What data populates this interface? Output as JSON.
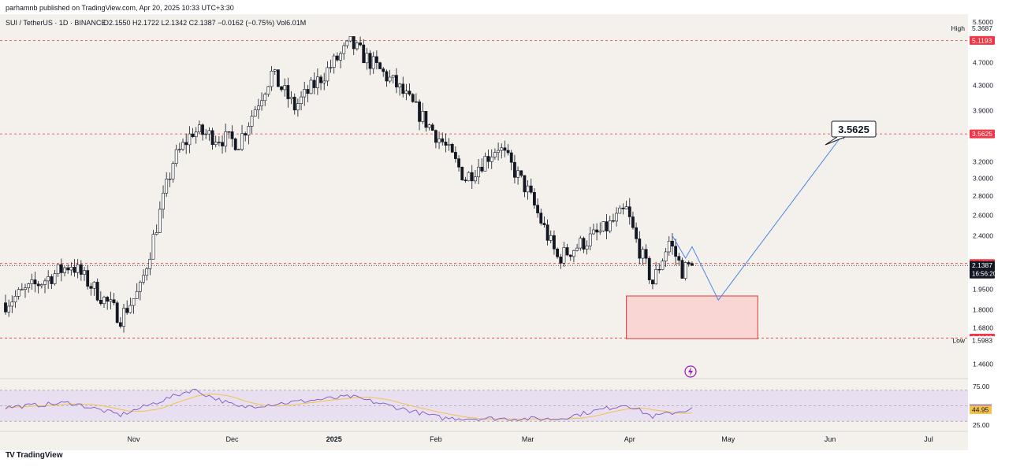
{
  "header": {
    "publisher_line": "parhamnb published on TradingView.com, Apr 20, 2025 10:33 UTC+3:30"
  },
  "legend": {
    "symbol": "SUI / TetherUS · 1D · BINANCE",
    "ohlc": "O2.1550 H2.1722 L2.1342 C2.1387 −0.0162 (−0.75%) Vol6.01M"
  },
  "footer": {
    "brand": "TradingView",
    "logo": "TV"
  },
  "colors": {
    "up": "#ffffff",
    "down": "#131722",
    "wick": "#131722",
    "level_line": "#e03a3a",
    "level_tag": "#f23645",
    "projection": "#4a86e8",
    "zone_fill": "#f9d5d3",
    "zone_border": "#e03a3a",
    "rsi_line": "#7e57c2",
    "rsi_ma": "#f2c14e",
    "rsi_band": "#e8e0f0"
  },
  "chart_data": {
    "type": "candlestick",
    "symbol": "SUI / TetherUS",
    "timeframe": "1D",
    "exchange": "BINANCE",
    "last": {
      "open": 2.155,
      "high": 2.1722,
      "low": 2.1342,
      "close": 2.1387,
      "change": -0.0162,
      "change_pct": -0.75,
      "volume": "6.01M"
    },
    "ylim": [
      1.4,
      5.6
    ],
    "y_scale": "log",
    "y_ticks": [
      "5.5000",
      "4.7000",
      "4.3000",
      "3.9000",
      "3.2000",
      "3.0000",
      "2.8000",
      "2.6000",
      "2.4000",
      "1.9500",
      "1.8000",
      "1.6800",
      "1.4600"
    ],
    "x_ticks": [
      "Nov",
      "Dec",
      "2025",
      "Feb",
      "Mar",
      "Apr",
      "May",
      "Jun",
      "Jul"
    ],
    "x_tick_dates": [
      "2024-11-01",
      "2024-12-01",
      "2025-01-01",
      "2025-02-01",
      "2025-03-01",
      "2025-04-01",
      "2025-05-01",
      "2025-06-01",
      "2025-07-01"
    ],
    "x_range": [
      "2024-09-23",
      "2025-07-13"
    ],
    "key_points": [
      {
        "date": "2024-09-23",
        "close": 1.85
      },
      {
        "date": "2024-10-13",
        "close": 2.15
      },
      {
        "date": "2024-10-28",
        "close": 1.75
      },
      {
        "date": "2024-11-03",
        "close": 1.95
      },
      {
        "date": "2024-11-13",
        "close": 3.2
      },
      {
        "date": "2024-11-19",
        "close": 3.6
      },
      {
        "date": "2024-12-03",
        "close": 3.45
      },
      {
        "date": "2024-12-13",
        "close": 4.5
      },
      {
        "date": "2024-12-20",
        "close": 3.95
      },
      {
        "date": "2025-01-06",
        "close": 5.05
      },
      {
        "date": "2025-01-20",
        "close": 4.3
      },
      {
        "date": "2025-02-03",
        "close": 3.45
      },
      {
        "date": "2025-02-10",
        "close": 3.0
      },
      {
        "date": "2025-02-20",
        "close": 3.4
      },
      {
        "date": "2025-03-01",
        "close": 2.85
      },
      {
        "date": "2025-03-10",
        "close": 2.2
      },
      {
        "date": "2025-03-24",
        "close": 2.45
      },
      {
        "date": "2025-03-31",
        "close": 2.65
      },
      {
        "date": "2025-04-03",
        "close": 2.35
      },
      {
        "date": "2025-04-08",
        "close": 2.0
      },
      {
        "date": "2025-04-13",
        "close": 2.35
      },
      {
        "date": "2025-04-17",
        "close": 2.1
      },
      {
        "date": "2025-04-20",
        "close": 2.1387
      }
    ],
    "levels": [
      {
        "label": "High",
        "value": "5.3687"
      },
      {
        "label": "",
        "value": "5.1193"
      },
      {
        "label": "",
        "value": "3.5625"
      },
      {
        "label": "",
        "value": "2.1553"
      },
      {
        "label": "",
        "value": "2.1387",
        "countdown": "16:56:20"
      },
      {
        "label": "",
        "value": "1.6138"
      },
      {
        "label": "Low",
        "value": "1.5983"
      }
    ],
    "projection_label": "3.5625",
    "projection_path": [
      {
        "date": "2025-04-14",
        "value": 2.4
      },
      {
        "date": "2025-04-18",
        "value": 2.2
      },
      {
        "date": "2025-04-20",
        "value": 2.3
      },
      {
        "date": "2025-04-28",
        "value": 1.87
      },
      {
        "date": "2025-06-05",
        "value": 3.5625
      }
    ],
    "demand_zone": {
      "from": "2025-03-31",
      "to": "2025-05-10",
      "high": 1.9,
      "low": 1.61
    },
    "rsi": {
      "ticks": [
        "75.00",
        "25.00"
      ],
      "last_value": "46.15",
      "ma_value": "44.95",
      "overbought": 70,
      "oversold": 30,
      "key_points": [
        {
          "date": "2024-09-23",
          "v": 48
        },
        {
          "date": "2024-10-13",
          "v": 54
        },
        {
          "date": "2024-10-28",
          "v": 38
        },
        {
          "date": "2024-11-19",
          "v": 71
        },
        {
          "date": "2024-12-03",
          "v": 48
        },
        {
          "date": "2025-01-06",
          "v": 62
        },
        {
          "date": "2025-02-03",
          "v": 34
        },
        {
          "date": "2025-03-10",
          "v": 33
        },
        {
          "date": "2025-03-31",
          "v": 52
        },
        {
          "date": "2025-04-08",
          "v": 36
        },
        {
          "date": "2025-04-20",
          "v": 46
        }
      ]
    }
  }
}
